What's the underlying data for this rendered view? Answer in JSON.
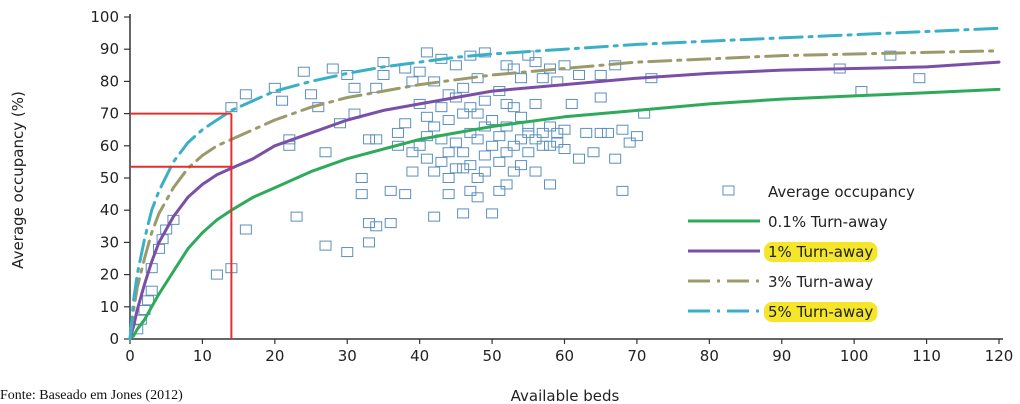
{
  "chart_data": {
    "type": "scatter",
    "xlabel": "Available beds",
    "ylabel": "Average occupancy (%)",
    "xlim": [
      0,
      120
    ],
    "ylim": [
      0,
      100
    ],
    "x_ticks": [
      0,
      10,
      20,
      30,
      40,
      50,
      60,
      70,
      80,
      90,
      100,
      110,
      120
    ],
    "y_ticks": [
      0,
      10,
      20,
      30,
      40,
      50,
      60,
      70,
      80,
      90,
      100
    ],
    "grid": false,
    "legend_position": "bottom-right",
    "colors": {
      "scatter": "#5b8fbf",
      "turnaway_0_1": "#2eaa5a",
      "turnaway_1": "#7a4fa8",
      "turnaway_3": "#9b9a6a",
      "turnaway_5": "#3ab0c8",
      "reference": "#e03030",
      "highlight": "#f5e62a"
    },
    "legend": [
      {
        "label": "Average occupancy",
        "style": "marker",
        "color_key": "scatter",
        "highlight": false
      },
      {
        "label": "0.1% Turn-away",
        "style": "solid",
        "color_key": "turnaway_0_1",
        "highlight": false
      },
      {
        "label": "1% Turn-away",
        "style": "solid",
        "color_key": "turnaway_1",
        "highlight": true
      },
      {
        "label": "3% Turn-away",
        "style": "dashdot",
        "color_key": "turnaway_3",
        "highlight": false
      },
      {
        "label": "5% Turn-away",
        "style": "dashdot",
        "color_key": "turnaway_5",
        "highlight": true
      }
    ],
    "series": [
      {
        "color_key": "turnaway_0_1",
        "style": "solid",
        "x": [
          0,
          0.5,
          1,
          2,
          3,
          4,
          6,
          8,
          10,
          12,
          14,
          17,
          20,
          25,
          30,
          35,
          40,
          45,
          50,
          60,
          70,
          80,
          90,
          100,
          110,
          120
        ],
        "y": [
          0,
          1,
          3,
          6,
          10,
          14,
          21,
          28,
          33,
          37,
          40,
          44,
          47,
          52,
          56,
          59,
          62,
          64,
          66,
          69,
          71,
          73,
          74.5,
          75.5,
          76.5,
          77.5
        ]
      },
      {
        "color_key": "turnaway_1",
        "style": "solid",
        "x": [
          0,
          0.5,
          1,
          2,
          3,
          4,
          6,
          8,
          10,
          12,
          14,
          17,
          20,
          25,
          30,
          35,
          40,
          45,
          50,
          60,
          70,
          80,
          90,
          100,
          110,
          120
        ],
        "y": [
          0,
          4,
          9,
          17,
          24,
          30,
          38,
          44,
          48,
          51,
          53,
          56,
          60,
          64,
          68,
          71,
          73,
          75,
          77,
          79,
          81,
          82.5,
          83.5,
          84,
          84.5,
          86
        ]
      },
      {
        "color_key": "turnaway_3",
        "style": "dashdot",
        "x": [
          0,
          0.5,
          1,
          2,
          3,
          4,
          6,
          8,
          10,
          12,
          14,
          17,
          20,
          25,
          30,
          35,
          40,
          45,
          50,
          60,
          70,
          80,
          90,
          100,
          110,
          120
        ],
        "y": [
          0,
          9,
          16,
          25,
          33,
          39,
          47,
          53,
          57,
          60,
          62,
          65,
          68,
          72,
          75,
          77,
          79,
          80.5,
          82,
          84,
          86,
          87,
          88,
          88.5,
          89,
          89.5
        ]
      },
      {
        "color_key": "turnaway_5",
        "style": "dashdot",
        "x": [
          0,
          0.5,
          1,
          2,
          3,
          4,
          6,
          8,
          10,
          12,
          14,
          17,
          20,
          25,
          30,
          35,
          40,
          45,
          50,
          60,
          70,
          80,
          90,
          100,
          110,
          120
        ],
        "y": [
          0,
          12,
          20,
          31,
          40,
          46,
          55,
          61,
          65,
          68,
          71,
          74,
          77,
          80,
          82.5,
          84.5,
          86,
          87.5,
          88.5,
          90,
          91.5,
          92.5,
          93.5,
          94.5,
          95.5,
          96.5
        ]
      }
    ],
    "reference_lines": [
      {
        "x": 14,
        "y": 70
      },
      {
        "x": 14,
        "y": 53.5
      }
    ],
    "points": [
      [
        1,
        3
      ],
      [
        1.5,
        6
      ],
      [
        2,
        9
      ],
      [
        2.5,
        12
      ],
      [
        3,
        15
      ],
      [
        3,
        22
      ],
      [
        4,
        28
      ],
      [
        4.5,
        31
      ],
      [
        5,
        34
      ],
      [
        6,
        37
      ],
      [
        12,
        20
      ],
      [
        14,
        22
      ],
      [
        14,
        72
      ],
      [
        16,
        34
      ],
      [
        16,
        76
      ],
      [
        20,
        78
      ],
      [
        21,
        74
      ],
      [
        22,
        60
      ],
      [
        22,
        62
      ],
      [
        23,
        38
      ],
      [
        24,
        83
      ],
      [
        25,
        76
      ],
      [
        26,
        72
      ],
      [
        27,
        29
      ],
      [
        27,
        58
      ],
      [
        28,
        84
      ],
      [
        29,
        67
      ],
      [
        30,
        27
      ],
      [
        30,
        82
      ],
      [
        31,
        70
      ],
      [
        31,
        78
      ],
      [
        32,
        45
      ],
      [
        32,
        50
      ],
      [
        33,
        30
      ],
      [
        33,
        36
      ],
      [
        33,
        62
      ],
      [
        34,
        35
      ],
      [
        34,
        62
      ],
      [
        34,
        78
      ],
      [
        35,
        82
      ],
      [
        35,
        86
      ],
      [
        36,
        36
      ],
      [
        36,
        46
      ],
      [
        37,
        60
      ],
      [
        37,
        64
      ],
      [
        38,
        45
      ],
      [
        38,
        67
      ],
      [
        38,
        84
      ],
      [
        39,
        52
      ],
      [
        39,
        58
      ],
      [
        39,
        80
      ],
      [
        40,
        60
      ],
      [
        40,
        73
      ],
      [
        40,
        83
      ],
      [
        41,
        56
      ],
      [
        41,
        63
      ],
      [
        41,
        69
      ],
      [
        41,
        89
      ],
      [
        42,
        38
      ],
      [
        42,
        52
      ],
      [
        42,
        66
      ],
      [
        42,
        80
      ],
      [
        43,
        55
      ],
      [
        43,
        62
      ],
      [
        43,
        72
      ],
      [
        43,
        87
      ],
      [
        44,
        45
      ],
      [
        44,
        50
      ],
      [
        44,
        58
      ],
      [
        44,
        68
      ],
      [
        44,
        76
      ],
      [
        45,
        53
      ],
      [
        45,
        61
      ],
      [
        45,
        75
      ],
      [
        45,
        85
      ],
      [
        46,
        39
      ],
      [
        46,
        53
      ],
      [
        46,
        58
      ],
      [
        46,
        70
      ],
      [
        46,
        78
      ],
      [
        47,
        46
      ],
      [
        47,
        54
      ],
      [
        47,
        64
      ],
      [
        47,
        72
      ],
      [
        47,
        88
      ],
      [
        48,
        44
      ],
      [
        48,
        50
      ],
      [
        48,
        62
      ],
      [
        48,
        70
      ],
      [
        48,
        81
      ],
      [
        49,
        52
      ],
      [
        49,
        57
      ],
      [
        49,
        66
      ],
      [
        49,
        74
      ],
      [
        49,
        89
      ],
      [
        50,
        39
      ],
      [
        50,
        60
      ],
      [
        50,
        68
      ],
      [
        51,
        46
      ],
      [
        51,
        55
      ],
      [
        51,
        63
      ],
      [
        51,
        77
      ],
      [
        52,
        48
      ],
      [
        52,
        58
      ],
      [
        52,
        66
      ],
      [
        52,
        73
      ],
      [
        52,
        85
      ],
      [
        53,
        52
      ],
      [
        53,
        60
      ],
      [
        53,
        72
      ],
      [
        53,
        84
      ],
      [
        54,
        54
      ],
      [
        54,
        62
      ],
      [
        54,
        69
      ],
      [
        54,
        81
      ],
      [
        55,
        58
      ],
      [
        55,
        64
      ],
      [
        55,
        66
      ],
      [
        55,
        88
      ],
      [
        56,
        52
      ],
      [
        56,
        62
      ],
      [
        56,
        73
      ],
      [
        56,
        86
      ],
      [
        57,
        60
      ],
      [
        57,
        64
      ],
      [
        57,
        81
      ],
      [
        58,
        48
      ],
      [
        58,
        60
      ],
      [
        58,
        66
      ],
      [
        58,
        84
      ],
      [
        59,
        61
      ],
      [
        59,
        64
      ],
      [
        59,
        80
      ],
      [
        60,
        59
      ],
      [
        60,
        65
      ],
      [
        60,
        85
      ],
      [
        61,
        73
      ],
      [
        62,
        56
      ],
      [
        62,
        82
      ],
      [
        63,
        64
      ],
      [
        64,
        58
      ],
      [
        65,
        64
      ],
      [
        65,
        75
      ],
      [
        65,
        82
      ],
      [
        66,
        64
      ],
      [
        67,
        56
      ],
      [
        67,
        85
      ],
      [
        68,
        46
      ],
      [
        68,
        65
      ],
      [
        69,
        61
      ],
      [
        70,
        63
      ],
      [
        71,
        70
      ],
      [
        72,
        81
      ],
      [
        98,
        84
      ],
      [
        101,
        77
      ],
      [
        105,
        88
      ],
      [
        109,
        81
      ]
    ]
  },
  "source_note": "Fonte: Baseado em Jones (2012)"
}
